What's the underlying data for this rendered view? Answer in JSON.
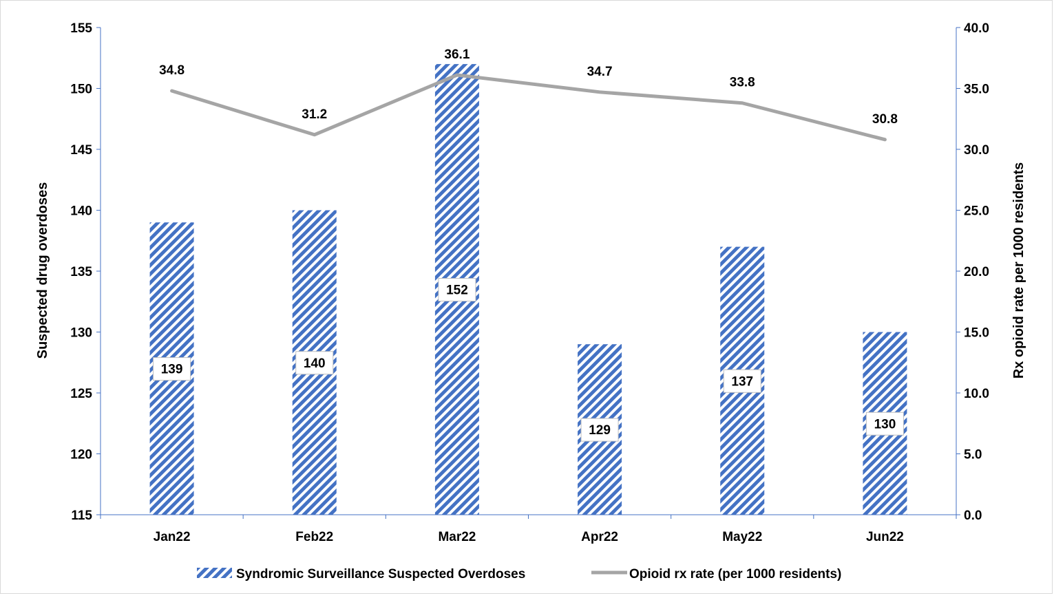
{
  "chart_data": {
    "type": "bar",
    "title": "",
    "categories": [
      "Jan22",
      "Feb22",
      "Mar22",
      "Apr22",
      "May22",
      "Jun22"
    ],
    "series": [
      {
        "name": "Syndromic Surveillance Suspected Overdoses",
        "type": "bar",
        "axis": "left",
        "values": [
          139,
          140,
          152,
          129,
          137,
          130
        ],
        "labels": [
          "139",
          "140",
          "152",
          "129",
          "137",
          "130"
        ],
        "color": "#4472c4",
        "pattern": "diagonal-stripes"
      },
      {
        "name": "Opioid rx rate (per 1000 residents)",
        "type": "line",
        "axis": "right",
        "values": [
          34.8,
          31.2,
          36.1,
          34.7,
          33.8,
          30.8
        ],
        "labels": [
          "34.8",
          "31.2",
          "36.1",
          "34.7",
          "33.8",
          "30.8"
        ],
        "color": "#a5a5a5"
      }
    ],
    "ylabel": "Suspected drug overdoses",
    "ylim": [
      115,
      155
    ],
    "yticks": [
      "115",
      "120",
      "125",
      "130",
      "135",
      "140",
      "145",
      "150",
      "155"
    ],
    "y2label": "Rx opioid rate per 1000 residents",
    "y2lim": [
      0,
      40
    ],
    "y2ticks": [
      "0.0",
      "5.0",
      "10.0",
      "15.0",
      "20.0",
      "25.0",
      "30.0",
      "35.0",
      "40.0"
    ],
    "grid": false,
    "legend": "bottom",
    "axis_color": "#4472c4"
  }
}
